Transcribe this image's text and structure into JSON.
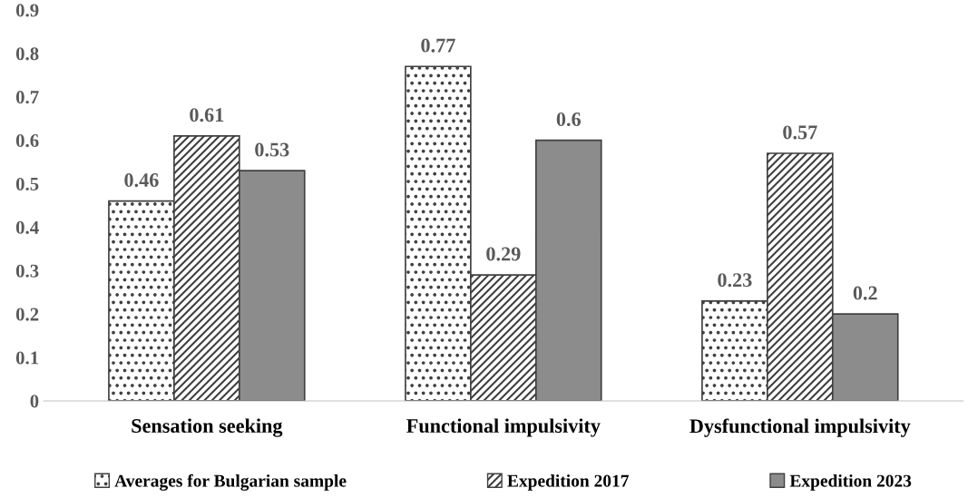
{
  "chart_data": {
    "type": "bar",
    "categories": [
      "Sensation seeking",
      "Functional impulsivity",
      "Dysfunctional impulsivity"
    ],
    "series": [
      {
        "name": "Averages for Bulgarian sample",
        "color": "#404040",
        "values": [
          0.46,
          0.77,
          0.23
        ]
      },
      {
        "name": "Expedition 2017",
        "color": "#404040",
        "values": [
          0.61,
          0.29,
          0.57
        ]
      },
      {
        "name": "Expedition 2023",
        "color": "#8c8c8c",
        "values": [
          0.53,
          0.6,
          0.2
        ]
      }
    ],
    "ylim": [
      0,
      0.9
    ],
    "yticks": [
      0,
      0.1,
      0.2,
      0.3,
      0.4,
      0.5,
      0.6,
      0.7,
      0.8,
      0.9
    ],
    "grid": false,
    "legend": "bottom",
    "data_labels": true
  }
}
